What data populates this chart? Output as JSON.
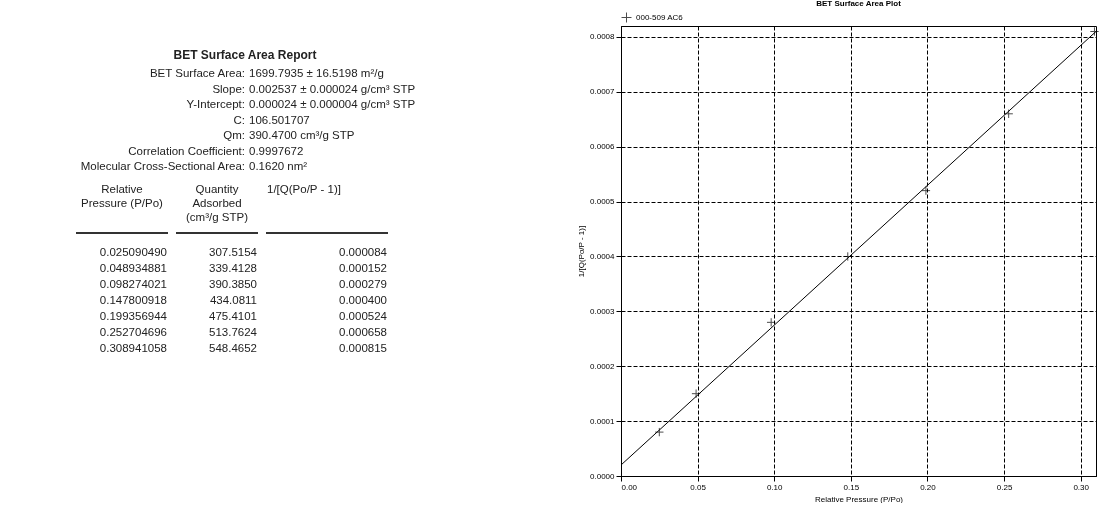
{
  "chart_data": [
    {
      "type": "other",
      "title": "BET Surface Area Report",
      "annotations": [
        "BET Surface Area: 1699.7935 ± 16.5198 m²/g",
        "Slope: 0.002537 ± 0.000024 g/cm³ STP",
        "Y-Intercept: 0.000024 ± 0.000004 g/cm³ STP",
        "C: 106.501707",
        "Qm: 390.4700 cm³/g STP",
        "Correlation Coefficient: 0.9997672",
        "Molecular Cross-Sectional Area: 0.1620 nm²"
      ],
      "categories": [
        "Relative Pressure (P/Po)",
        "Quantity Adsorbed (cm³/g STP)",
        "1/[Q(Po/P - 1)]"
      ],
      "cells": [
        [
          "0.025090490",
          "307.5154",
          "0.000084"
        ],
        [
          "0.048934881",
          "339.4128",
          "0.000152"
        ],
        [
          "0.098274021",
          "390.3850",
          "0.000279"
        ],
        [
          "0.147800918",
          "434.0811",
          "0.000400"
        ],
        [
          "0.199356944",
          "475.4101",
          "0.000524"
        ],
        [
          "0.252704696",
          "513.7624",
          "0.000658"
        ],
        [
          "0.308941058",
          "548.4652",
          "0.000815"
        ]
      ]
    },
    {
      "type": "scatter",
      "title": "BET Surface Area Plot",
      "xlabel": "Relative Pressure (P/Po)",
      "ylabel": "1/[Q(Po/P - 1)]",
      "x": [
        0.025,
        0.049,
        0.098,
        0.148,
        0.199,
        0.253,
        0.309
      ],
      "series": [
        {
          "name": "000-509 AC6",
          "type": "scatter",
          "color": "#000000",
          "marker": "cross",
          "values": [
            8e-05,
            0.00015,
            0.00028,
            0.0004,
            0.00052,
            0.00066,
            0.00081
          ]
        },
        {
          "type": "line",
          "color": "#000000",
          "x": [
            0,
            0.31
          ],
          "values": [
            2e-05,
            0.00081
          ]
        }
      ],
      "xlim": [
        0,
        0.31
      ],
      "ylim": [
        0,
        0.00082
      ],
      "xticks": [
        {
          "value": 0,
          "label": "0.00"
        },
        0.05,
        {
          "value": 0.1,
          "label": "0.10"
        },
        0.15,
        {
          "value": 0.2,
          "label": "0.20"
        },
        0.25,
        {
          "value": 0.3,
          "label": "0.30"
        }
      ],
      "yticks": [
        {
          "value": 0,
          "label": "0.0000"
        },
        0.0001,
        0.0002,
        0.0003,
        0.0004,
        0.0005,
        0.0006,
        0.0007,
        0.0008
      ],
      "grid": true,
      "legend": "top left"
    }
  ]
}
